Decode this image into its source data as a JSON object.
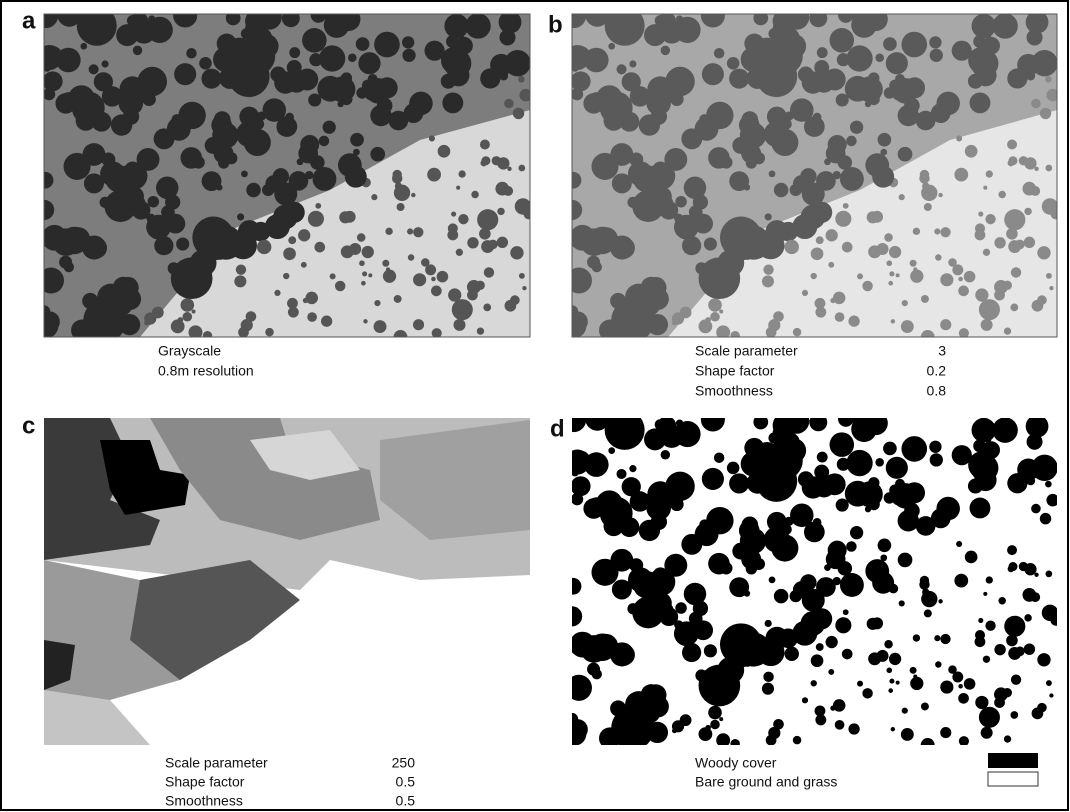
{
  "panels": [
    {
      "label": "a",
      "caption": [
        [
          "Grayscale"
        ],
        [
          "0.8m resolution"
        ]
      ]
    },
    {
      "label": "b",
      "caption": [
        [
          "Scale parameter",
          3
        ],
        [
          "Shape factor",
          0.2
        ],
        [
          "Smoothness",
          0.8
        ]
      ]
    },
    {
      "label": "c",
      "caption": [
        [
          "Scale parameter",
          250
        ],
        [
          "Shape factor",
          0.5
        ],
        [
          "Smoothness",
          0.5
        ]
      ]
    },
    {
      "label": "d",
      "legend": [
        "Woody cover",
        "Bare ground and grass"
      ]
    }
  ]
}
